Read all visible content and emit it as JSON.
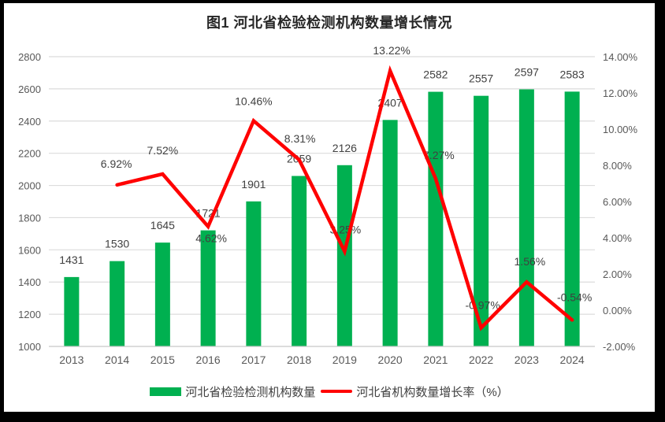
{
  "title": "图1 河北省检验检测机构数量增长情况",
  "colors": {
    "frame": "#000000",
    "background": "#FFFFFF",
    "bar": "#00B050",
    "line": "#FF0000",
    "gridline": "#DCDCDC",
    "axis_line": "#C6C6C6",
    "axis_text": "#595959",
    "data_label_text": "#404040",
    "title_text": "#262626"
  },
  "chart_data": {
    "type": "combo-bar-line",
    "title": "图1 河北省检验检测机构数量增长情况",
    "categories": [
      "2013",
      "2014",
      "2015",
      "2016",
      "2017",
      "2018",
      "2019",
      "2020",
      "2021",
      "2022",
      "2023",
      "2024"
    ],
    "series": [
      {
        "name": "河北省检验检测机构数量",
        "type": "bar",
        "yaxis": "left",
        "color": "#00B050",
        "values": [
          1431,
          1530,
          1645,
          1721,
          1901,
          2059,
          2126,
          2407,
          2582,
          2557,
          2597,
          2583
        ],
        "point_labels": [
          "1431",
          "1530",
          "1645",
          "1721",
          "1901",
          "2059",
          "2126",
          "2407",
          "2582",
          "2557",
          "2597",
          "2583"
        ]
      },
      {
        "name": "河北省机构数量增长率（%）",
        "type": "line",
        "yaxis": "right",
        "color": "#FF0000",
        "values": [
          null,
          6.92,
          7.52,
          4.62,
          10.46,
          8.31,
          3.25,
          13.22,
          7.27,
          -0.97,
          1.56,
          -0.54
        ],
        "point_labels": [
          null,
          "6.92%",
          "7.52%",
          "4.62%",
          "10.46%",
          "8.31%",
          "3.25%",
          "13.22%",
          "7.27%",
          "-0.97%",
          "1.56%",
          "-0.54%"
        ]
      }
    ],
    "left_axis": {
      "min": 1000,
      "max": 2800,
      "step": 200,
      "tick_labels": [
        "1000",
        "1200",
        "1400",
        "1600",
        "1800",
        "2000",
        "2200",
        "2400",
        "2600",
        "2800"
      ]
    },
    "right_axis": {
      "min": -2,
      "max": 14,
      "step": 2,
      "tick_labels": [
        "-2.00%",
        "0.00%",
        "2.00%",
        "4.00%",
        "6.00%",
        "8.00%",
        "10.00%",
        "12.00%",
        "14.00%"
      ]
    },
    "grid": "horizontal major gridlines (left axis)",
    "legend_position": "bottom"
  }
}
